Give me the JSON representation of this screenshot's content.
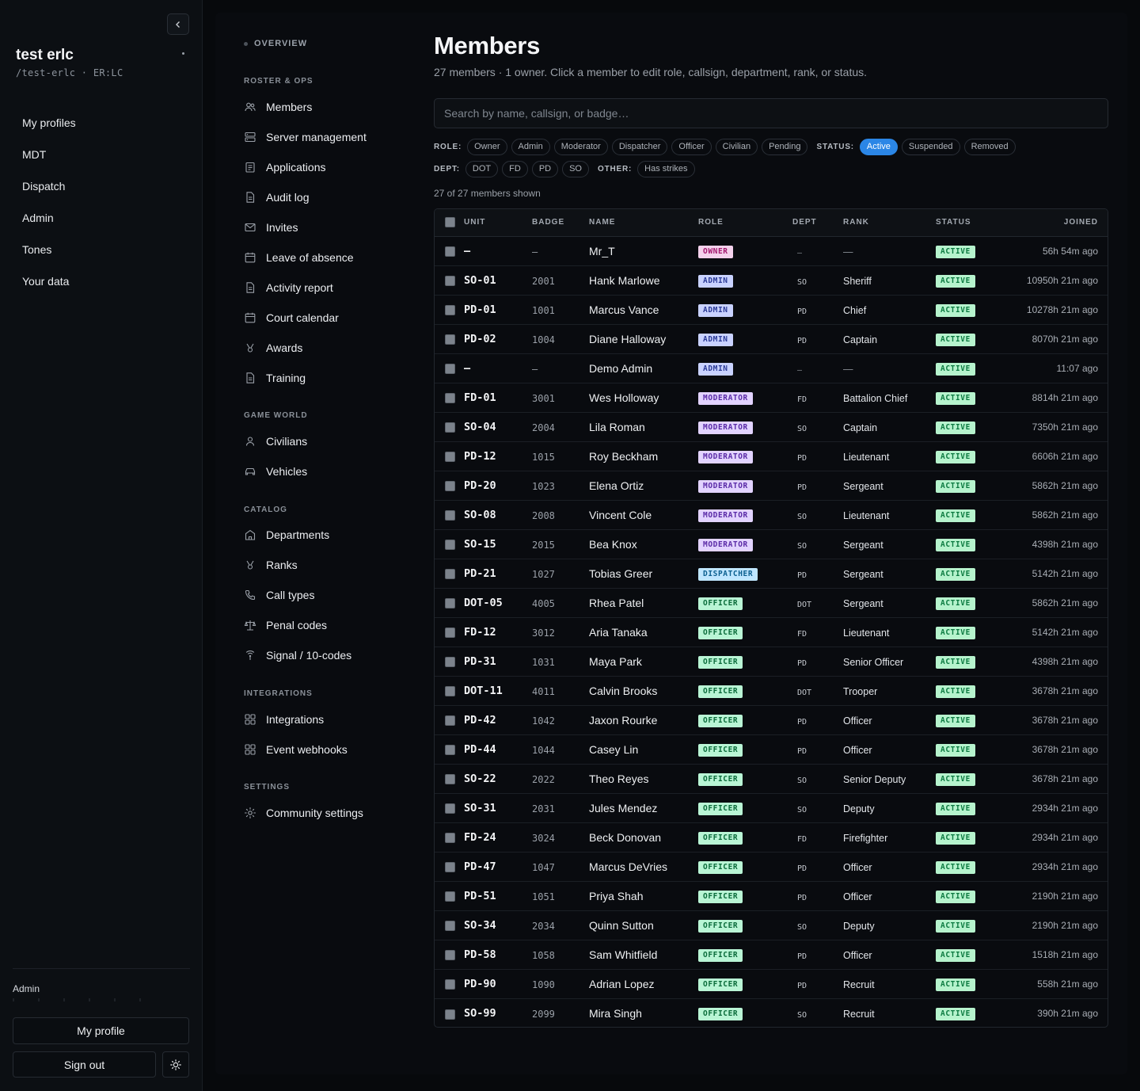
{
  "sidebar": {
    "org_name": "test erlc",
    "org_slug": "/test-erlc",
    "org_game": "ER:LC",
    "nav": [
      "My profiles",
      "MDT",
      "Dispatch",
      "Admin",
      "Tones",
      "Your data"
    ],
    "user_role": "Admin",
    "my_profile_label": "My profile",
    "sign_out_label": "Sign out"
  },
  "subnav": {
    "overview": "OVERVIEW",
    "sections": [
      {
        "title": "ROSTER & OPS",
        "items": [
          "Members",
          "Server management",
          "Applications",
          "Audit log",
          "Invites",
          "Leave of absence",
          "Activity report",
          "Court calendar",
          "Awards",
          "Training"
        ]
      },
      {
        "title": "GAME WORLD",
        "items": [
          "Civilians",
          "Vehicles"
        ]
      },
      {
        "title": "CATALOG",
        "items": [
          "Departments",
          "Ranks",
          "Call types",
          "Penal codes",
          "Signal / 10-codes"
        ]
      },
      {
        "title": "INTEGRATIONS",
        "items": [
          "Integrations",
          "Event webhooks"
        ]
      },
      {
        "title": "SETTINGS",
        "items": [
          "Community settings"
        ]
      }
    ]
  },
  "page": {
    "title": "Members",
    "subtitle": "27 members · 1 owner. Click a member to edit role, callsign, department, rank, or status.",
    "search_placeholder": "Search by name, callsign, or badge…",
    "count_text": "27 of 27 members shown"
  },
  "filters": {
    "role_label": "ROLE:",
    "roles": [
      "Owner",
      "Admin",
      "Moderator",
      "Dispatcher",
      "Officer",
      "Civilian",
      "Pending"
    ],
    "status_label": "STATUS:",
    "statuses": [
      "Active",
      "Suspended",
      "Removed"
    ],
    "active_status": "Active",
    "dept_label": "DEPT:",
    "depts": [
      "DOT",
      "FD",
      "PD",
      "SO"
    ],
    "other_label": "OTHER:",
    "others": [
      "Has strikes"
    ]
  },
  "table": {
    "headers": [
      "UNIT",
      "BADGE",
      "NAME",
      "ROLE",
      "DEPT",
      "RANK",
      "STATUS",
      "JOINED"
    ],
    "rows": [
      {
        "unit": "—",
        "badge": "—",
        "name": "Mr_T",
        "role": "OWNER",
        "dept": "—",
        "rank": "—",
        "status": "ACTIVE",
        "joined": "56h 54m ago"
      },
      {
        "unit": "SO-01",
        "badge": "2001",
        "name": "Hank Marlowe",
        "role": "ADMIN",
        "dept": "SO",
        "rank": "Sheriff",
        "status": "ACTIVE",
        "joined": "10950h 21m ago"
      },
      {
        "unit": "PD-01",
        "badge": "1001",
        "name": "Marcus Vance",
        "role": "ADMIN",
        "dept": "PD",
        "rank": "Chief",
        "status": "ACTIVE",
        "joined": "10278h 21m ago"
      },
      {
        "unit": "PD-02",
        "badge": "1004",
        "name": "Diane Halloway",
        "role": "ADMIN",
        "dept": "PD",
        "rank": "Captain",
        "status": "ACTIVE",
        "joined": "8070h 21m ago"
      },
      {
        "unit": "—",
        "badge": "—",
        "name": "Demo Admin",
        "role": "ADMIN",
        "dept": "—",
        "rank": "—",
        "status": "ACTIVE",
        "joined": "11:07 ago"
      },
      {
        "unit": "FD-01",
        "badge": "3001",
        "name": "Wes Holloway",
        "role": "MODERATOR",
        "dept": "FD",
        "rank": "Battalion Chief",
        "status": "ACTIVE",
        "joined": "8814h 21m ago"
      },
      {
        "unit": "SO-04",
        "badge": "2004",
        "name": "Lila Roman",
        "role": "MODERATOR",
        "dept": "SO",
        "rank": "Captain",
        "status": "ACTIVE",
        "joined": "7350h 21m ago"
      },
      {
        "unit": "PD-12",
        "badge": "1015",
        "name": "Roy Beckham",
        "role": "MODERATOR",
        "dept": "PD",
        "rank": "Lieutenant",
        "status": "ACTIVE",
        "joined": "6606h 21m ago"
      },
      {
        "unit": "PD-20",
        "badge": "1023",
        "name": "Elena Ortiz",
        "role": "MODERATOR",
        "dept": "PD",
        "rank": "Sergeant",
        "status": "ACTIVE",
        "joined": "5862h 21m ago"
      },
      {
        "unit": "SO-08",
        "badge": "2008",
        "name": "Vincent Cole",
        "role": "MODERATOR",
        "dept": "SO",
        "rank": "Lieutenant",
        "status": "ACTIVE",
        "joined": "5862h 21m ago"
      },
      {
        "unit": "SO-15",
        "badge": "2015",
        "name": "Bea Knox",
        "role": "MODERATOR",
        "dept": "SO",
        "rank": "Sergeant",
        "status": "ACTIVE",
        "joined": "4398h 21m ago"
      },
      {
        "unit": "PD-21",
        "badge": "1027",
        "name": "Tobias Greer",
        "role": "DISPATCHER",
        "dept": "PD",
        "rank": "Sergeant",
        "status": "ACTIVE",
        "joined": "5142h 21m ago"
      },
      {
        "unit": "DOT-05",
        "badge": "4005",
        "name": "Rhea Patel",
        "role": "OFFICER",
        "dept": "DOT",
        "rank": "Sergeant",
        "status": "ACTIVE",
        "joined": "5862h 21m ago"
      },
      {
        "unit": "FD-12",
        "badge": "3012",
        "name": "Aria Tanaka",
        "role": "OFFICER",
        "dept": "FD",
        "rank": "Lieutenant",
        "status": "ACTIVE",
        "joined": "5142h 21m ago"
      },
      {
        "unit": "PD-31",
        "badge": "1031",
        "name": "Maya Park",
        "role": "OFFICER",
        "dept": "PD",
        "rank": "Senior Officer",
        "status": "ACTIVE",
        "joined": "4398h 21m ago"
      },
      {
        "unit": "DOT-11",
        "badge": "4011",
        "name": "Calvin Brooks",
        "role": "OFFICER",
        "dept": "DOT",
        "rank": "Trooper",
        "status": "ACTIVE",
        "joined": "3678h 21m ago"
      },
      {
        "unit": "PD-42",
        "badge": "1042",
        "name": "Jaxon Rourke",
        "role": "OFFICER",
        "dept": "PD",
        "rank": "Officer",
        "status": "ACTIVE",
        "joined": "3678h 21m ago"
      },
      {
        "unit": "PD-44",
        "badge": "1044",
        "name": "Casey Lin",
        "role": "OFFICER",
        "dept": "PD",
        "rank": "Officer",
        "status": "ACTIVE",
        "joined": "3678h 21m ago"
      },
      {
        "unit": "SO-22",
        "badge": "2022",
        "name": "Theo Reyes",
        "role": "OFFICER",
        "dept": "SO",
        "rank": "Senior Deputy",
        "status": "ACTIVE",
        "joined": "3678h 21m ago"
      },
      {
        "unit": "SO-31",
        "badge": "2031",
        "name": "Jules Mendez",
        "role": "OFFICER",
        "dept": "SO",
        "rank": "Deputy",
        "status": "ACTIVE",
        "joined": "2934h 21m ago"
      },
      {
        "unit": "FD-24",
        "badge": "3024",
        "name": "Beck Donovan",
        "role": "OFFICER",
        "dept": "FD",
        "rank": "Firefighter",
        "status": "ACTIVE",
        "joined": "2934h 21m ago"
      },
      {
        "unit": "PD-47",
        "badge": "1047",
        "name": "Marcus DeVries",
        "role": "OFFICER",
        "dept": "PD",
        "rank": "Officer",
        "status": "ACTIVE",
        "joined": "2934h 21m ago"
      },
      {
        "unit": "PD-51",
        "badge": "1051",
        "name": "Priya Shah",
        "role": "OFFICER",
        "dept": "PD",
        "rank": "Officer",
        "status": "ACTIVE",
        "joined": "2190h 21m ago"
      },
      {
        "unit": "SO-34",
        "badge": "2034",
        "name": "Quinn Sutton",
        "role": "OFFICER",
        "dept": "SO",
        "rank": "Deputy",
        "status": "ACTIVE",
        "joined": "2190h 21m ago"
      },
      {
        "unit": "PD-58",
        "badge": "1058",
        "name": "Sam Whitfield",
        "role": "OFFICER",
        "dept": "PD",
        "rank": "Officer",
        "status": "ACTIVE",
        "joined": "1518h 21m ago"
      },
      {
        "unit": "PD-90",
        "badge": "1090",
        "name": "Adrian Lopez",
        "role": "OFFICER",
        "dept": "PD",
        "rank": "Recruit",
        "status": "ACTIVE",
        "joined": "558h 21m ago"
      },
      {
        "unit": "SO-99",
        "badge": "2099",
        "name": "Mira Singh",
        "role": "OFFICER",
        "dept": "SO",
        "rank": "Recruit",
        "status": "ACTIVE",
        "joined": "390h 21m ago"
      }
    ]
  },
  "colors": {
    "accent": "#2b86e6",
    "owner": "#f4d2ec",
    "admin": "#c9d2ff",
    "moderator": "#e2d3ff",
    "dispatcher": "#bfe6ff",
    "officer": "#b9f5d5",
    "active": "#b6f3cd"
  }
}
